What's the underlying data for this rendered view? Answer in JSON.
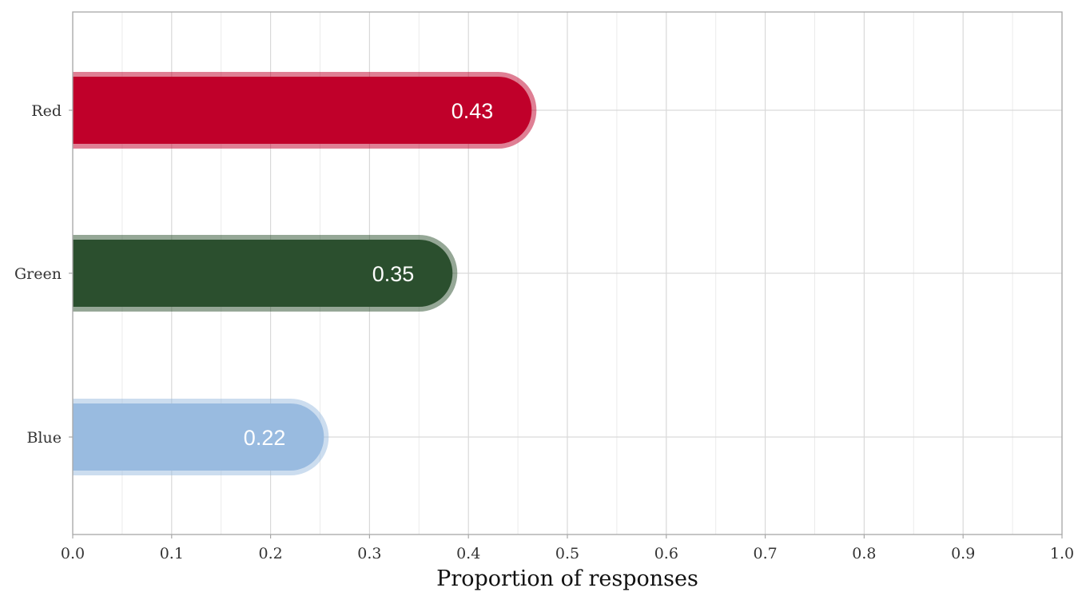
{
  "chart_data": {
    "type": "bar",
    "orientation": "horizontal",
    "categories": [
      "Red",
      "Green",
      "Blue"
    ],
    "values": [
      0.43,
      0.35,
      0.22
    ],
    "value_labels": [
      "0.43",
      "0.35",
      "0.22"
    ],
    "colors": [
      "#c0002a",
      "#2b4f2e",
      "#99bbe0"
    ],
    "xlabel": "Proportion of responses",
    "ylabel": "",
    "xlim": [
      0.0,
      1.0
    ],
    "x_ticks": [
      0.0,
      0.1,
      0.2,
      0.3,
      0.4,
      0.5,
      0.6,
      0.7,
      0.8,
      0.9,
      1.0
    ],
    "x_tick_labels": [
      "0.0",
      "0.1",
      "0.2",
      "0.3",
      "0.4",
      "0.5",
      "0.6",
      "0.7",
      "0.8",
      "0.9",
      "1.0"
    ],
    "grid": true,
    "legend": "none"
  }
}
